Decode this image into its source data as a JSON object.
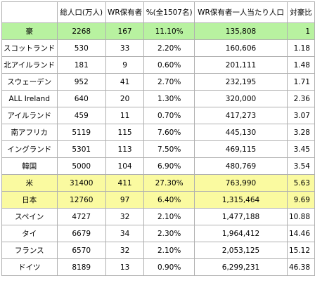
{
  "colors": {
    "highlight_green": "#b8f2a0",
    "highlight_yellow": "#fafaa0",
    "border": "#b0b0b0"
  },
  "table": {
    "headers": [
      "",
      "総人口(万人)",
      "WR保有者",
      "%(全1507名)",
      "WR保有者一人当たり人口",
      "対豪比"
    ],
    "rows": [
      {
        "highlight": "green",
        "cells": [
          "豪",
          "2268",
          "167",
          "11.10%",
          "135,808",
          "1"
        ]
      },
      {
        "highlight": "none",
        "cells": [
          "スコットランド",
          "530",
          "33",
          "2.20%",
          "160,606",
          "1.18"
        ]
      },
      {
        "highlight": "none",
        "cells": [
          "北アイルランド",
          "181",
          "9",
          "0.60%",
          "201,111",
          "1.48"
        ]
      },
      {
        "highlight": "none",
        "cells": [
          "スウェーデン",
          "952",
          "41",
          "2.70%",
          "232,195",
          "1.71"
        ]
      },
      {
        "highlight": "none",
        "cells": [
          "ALL Ireland",
          "640",
          "20",
          "1.30%",
          "320,000",
          "2.36"
        ]
      },
      {
        "highlight": "none",
        "cells": [
          "アイルランド",
          "459",
          "11",
          "0.70%",
          "417,273",
          "3.07"
        ]
      },
      {
        "highlight": "none",
        "cells": [
          "南アフリカ",
          "5119",
          "115",
          "7.60%",
          "445,130",
          "3.28"
        ]
      },
      {
        "highlight": "none",
        "cells": [
          "イングランド",
          "5301",
          "113",
          "7.50%",
          "469,115",
          "3.45"
        ]
      },
      {
        "highlight": "none",
        "cells": [
          "韓国",
          "5000",
          "104",
          "6.90%",
          "480,769",
          "3.54"
        ]
      },
      {
        "highlight": "yellow",
        "cells": [
          "米",
          "31400",
          "411",
          "27.30%",
          "763,990",
          "5.63"
        ]
      },
      {
        "highlight": "yellow",
        "cells": [
          "日本",
          "12760",
          "97",
          "6.40%",
          "1,315,464",
          "9.69"
        ]
      },
      {
        "highlight": "none",
        "cells": [
          "スペイン",
          "4727",
          "32",
          "2.10%",
          "1,477,188",
          "10.88"
        ]
      },
      {
        "highlight": "none",
        "cells": [
          "タイ",
          "6679",
          "34",
          "2.30%",
          "1,964,412",
          "14.46"
        ]
      },
      {
        "highlight": "none",
        "cells": [
          "フランス",
          "6570",
          "32",
          "2.10%",
          "2,053,125",
          "15.12"
        ]
      },
      {
        "highlight": "none",
        "cells": [
          "ドイツ",
          "8189",
          "13",
          "0.90%",
          "6,299,231",
          "46.38"
        ]
      }
    ]
  }
}
